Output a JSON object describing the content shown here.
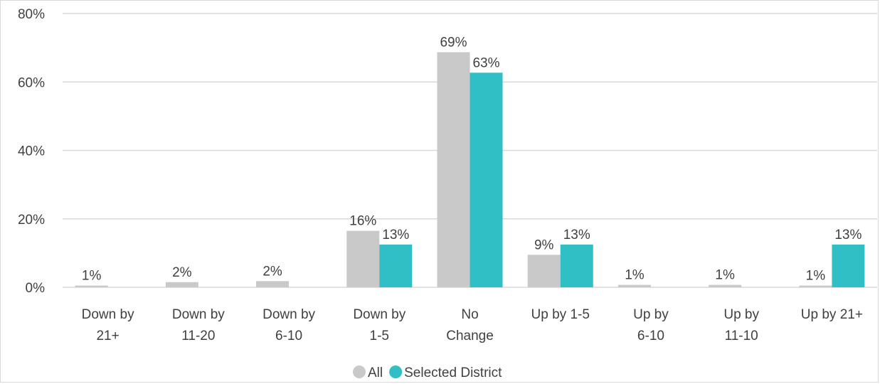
{
  "chart_data": {
    "type": "bar",
    "categories": [
      [
        "Down by",
        "21+"
      ],
      [
        "Down by",
        "11-20"
      ],
      [
        "Down by",
        "6-10"
      ],
      [
        "Down by",
        "1-5"
      ],
      [
        "No",
        "Change"
      ],
      [
        "Up by 1-5"
      ],
      [
        "Up by",
        "6-10"
      ],
      [
        "Up by",
        "11-10"
      ],
      [
        "Up by 21+"
      ]
    ],
    "series": [
      {
        "name": "All",
        "color": "#c9c9c9",
        "values": [
          0.5,
          1.5,
          1.8,
          16.5,
          68.7,
          9.5,
          0.7,
          0.7,
          0.5
        ],
        "labels": [
          "1%",
          "2%",
          "2%",
          "16%",
          "69%",
          "9%",
          "1%",
          "1%",
          "1%"
        ]
      },
      {
        "name": "Selected District",
        "color": "#2fbfc4",
        "values": [
          0,
          0,
          0,
          12.5,
          62.7,
          12.5,
          0,
          0,
          12.5
        ],
        "labels": [
          "",
          "",
          "",
          "13%",
          "63%",
          "13%",
          "",
          "",
          "13%"
        ]
      }
    ],
    "ylim": [
      0,
      80
    ],
    "yticks": [
      "0%",
      "20%",
      "40%",
      "60%",
      "80%"
    ],
    "ytick_values": [
      0,
      20,
      40,
      60,
      80
    ],
    "grid": true,
    "legend_position": "bottom"
  }
}
